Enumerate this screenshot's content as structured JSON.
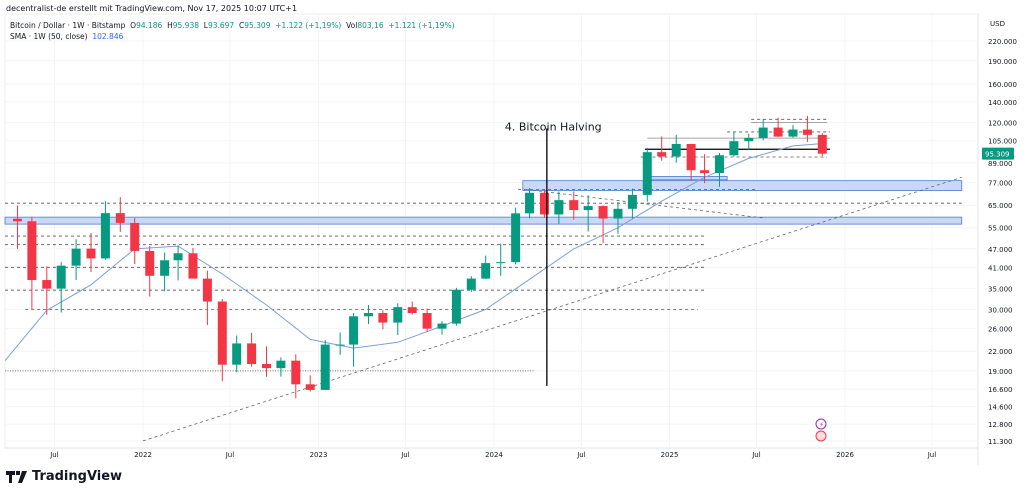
{
  "header": "decentralist-de erstellt mit TradingView.com, Nov 17, 2025 10:07 UTC+1",
  "legend": {
    "symbol": "Bitcoin / Dollar · 1W · Bitstamp",
    "o": "94.186",
    "h": "95.938",
    "l": "93.697",
    "c": "95.309",
    "change": "+1.122 (+1,19%)",
    "vol": "803,16",
    "vol_change": "+1.121 (+1,19%)",
    "sma_label": "SMA · 1W (50, close)",
    "sma_value": "102.846"
  },
  "logo_text": "TradingView",
  "chart_data": {
    "type": "candlestick",
    "yscale": "log",
    "ylabel": "USD",
    "ylim": [
      10500,
      260000
    ],
    "xlim": [
      "2021-03-20",
      "2026-08-31"
    ],
    "yticks": [
      220000,
      190000,
      160000,
      140000,
      120000,
      105000,
      89000,
      77000,
      65000,
      55000,
      47000,
      41000,
      35000,
      30000,
      26000,
      22000,
      19000,
      16600,
      14600,
      12800,
      11300
    ],
    "ytick_labels": [
      "220.000",
      "190.000",
      "160.000",
      "140.000",
      "120.000",
      "105.000",
      "89.000",
      "77.000",
      "65.000",
      "55.000",
      "47.000",
      "41.000",
      "35.000",
      "30.000",
      "26.000",
      "22.000",
      "19.000",
      "16.600",
      "14.600",
      "12.800",
      "11.300"
    ],
    "xticks": [
      {
        "d": "2021-07-01",
        "l": "Jul"
      },
      {
        "d": "2022-01-01",
        "l": "2022"
      },
      {
        "d": "2022-07-01",
        "l": "Jul"
      },
      {
        "d": "2023-01-01",
        "l": "2023"
      },
      {
        "d": "2023-07-01",
        "l": "Jul"
      },
      {
        "d": "2024-01-01",
        "l": "2024"
      },
      {
        "d": "2024-07-01",
        "l": "Jul"
      },
      {
        "d": "2025-01-01",
        "l": "2025"
      },
      {
        "d": "2025-07-01",
        "l": "Jul"
      },
      {
        "d": "2026-01-01",
        "l": "2026"
      },
      {
        "d": "2026-07-01",
        "l": "Jul"
      }
    ],
    "last_price": 95309,
    "last_price_label": "95.309",
    "colors": {
      "up": "#089981",
      "down": "#f23645",
      "sma": "#7f9fd6",
      "zone": "#c9d8f7",
      "zone_border": "#4a7bd0",
      "last": "#089981"
    },
    "candles_monthly": [
      [
        "2021-04",
        58.8,
        64.9,
        47.0,
        57.7
      ],
      [
        "2021-05",
        57.7,
        59.6,
        30.0,
        37.3
      ],
      [
        "2021-06",
        37.3,
        41.3,
        28.8,
        35.0
      ],
      [
        "2021-07",
        35.0,
        42.6,
        29.3,
        41.5
      ],
      [
        "2021-08",
        41.5,
        50.5,
        37.3,
        47.1
      ],
      [
        "2021-09",
        47.1,
        52.9,
        39.6,
        43.8
      ],
      [
        "2021-10",
        43.8,
        67.0,
        43.3,
        61.3
      ],
      [
        "2021-11",
        61.3,
        69.0,
        53.3,
        57.0
      ],
      [
        "2021-12",
        57.0,
        59.1,
        42.0,
        46.3
      ],
      [
        "2022-01",
        46.3,
        48.0,
        33.0,
        38.5
      ],
      [
        "2022-02",
        38.5,
        45.8,
        34.3,
        43.2
      ],
      [
        "2022-03",
        43.2,
        48.2,
        37.2,
        45.5
      ],
      [
        "2022-04",
        45.5,
        47.4,
        37.7,
        37.7
      ],
      [
        "2022-05",
        37.7,
        40.0,
        26.7,
        31.8
      ],
      [
        "2022-06",
        31.8,
        32.4,
        17.6,
        19.9
      ],
      [
        "2022-07",
        19.9,
        24.7,
        18.8,
        23.3
      ],
      [
        "2022-08",
        23.3,
        25.2,
        19.6,
        20.0
      ],
      [
        "2022-09",
        20.0,
        22.8,
        18.2,
        19.4
      ],
      [
        "2022-10",
        19.4,
        21.0,
        18.2,
        20.5
      ],
      [
        "2022-11",
        20.5,
        21.5,
        15.5,
        17.2
      ],
      [
        "2022-12",
        17.2,
        18.4,
        16.3,
        16.5
      ],
      [
        "2023-01",
        16.5,
        23.9,
        16.5,
        23.1
      ],
      [
        "2023-02",
        23.1,
        25.3,
        21.4,
        23.1
      ],
      [
        "2023-03",
        23.1,
        29.2,
        19.6,
        28.5
      ],
      [
        "2023-04",
        28.5,
        31.0,
        26.9,
        29.2
      ],
      [
        "2023-05",
        29.2,
        29.8,
        25.9,
        27.2
      ],
      [
        "2023-06",
        27.2,
        31.4,
        24.8,
        30.5
      ],
      [
        "2023-07",
        30.5,
        31.8,
        28.9,
        29.2
      ],
      [
        "2023-08",
        29.2,
        30.2,
        25.4,
        26.0
      ],
      [
        "2023-09",
        26.0,
        27.5,
        24.9,
        27.0
      ],
      [
        "2023-10",
        27.0,
        35.2,
        26.6,
        34.7
      ],
      [
        "2023-11",
        34.7,
        38.4,
        34.1,
        37.7
      ],
      [
        "2023-12",
        37.7,
        44.7,
        37.6,
        42.3
      ],
      [
        "2024-01",
        42.3,
        48.9,
        38.5,
        42.6
      ],
      [
        "2024-02",
        42.6,
        63.9,
        41.9,
        61.2
      ],
      [
        "2024-03",
        61.2,
        73.8,
        59.0,
        71.3
      ],
      [
        "2024-04",
        71.3,
        72.7,
        59.2,
        60.7
      ],
      [
        "2024-05",
        60.7,
        72.0,
        56.6,
        67.5
      ],
      [
        "2024-06",
        67.5,
        72.0,
        58.4,
        62.7
      ],
      [
        "2024-07",
        62.7,
        70.0,
        53.5,
        64.6
      ],
      [
        "2024-08",
        64.6,
        65.0,
        49.0,
        58.9
      ],
      [
        "2024-09",
        58.9,
        66.5,
        52.6,
        63.3
      ],
      [
        "2024-10",
        63.3,
        73.6,
        58.9,
        70.2
      ],
      [
        "2024-11",
        70.2,
        99.6,
        66.8,
        96.4
      ],
      [
        "2024-12",
        96.4,
        108.3,
        90.5,
        93.4
      ],
      [
        "2025-01",
        93.4,
        109.6,
        89.2,
        102.4
      ],
      [
        "2025-02",
        102.4,
        102.5,
        78.2,
        84.3
      ],
      [
        "2025-03",
        84.3,
        95.0,
        76.6,
        82.5
      ],
      [
        "2025-04",
        82.5,
        95.7,
        74.5,
        94.2
      ],
      [
        "2025-05",
        94.2,
        111.9,
        93.3,
        104.6
      ],
      [
        "2025-06",
        104.6,
        110.5,
        98.2,
        107.1
      ],
      [
        "2025-07",
        107.1,
        123.2,
        105.3,
        115.7
      ],
      [
        "2025-08",
        115.7,
        124.5,
        108.0,
        108.2
      ],
      [
        "2025-09",
        108.2,
        117.9,
        107.3,
        114.0
      ],
      [
        "2025-10",
        114.0,
        126.2,
        104.0,
        109.6
      ],
      [
        "2025-11",
        109.6,
        111.0,
        93.7,
        95.3
      ]
    ],
    "candle_units": "thousand USD",
    "sma_series": [
      [
        "2021-03-20",
        20.5
      ],
      [
        "2021-06-15",
        29.8
      ],
      [
        "2021-09-15",
        36
      ],
      [
        "2021-12-15",
        47
      ],
      [
        "2022-03-15",
        48
      ],
      [
        "2022-06-15",
        39
      ],
      [
        "2022-09-15",
        31
      ],
      [
        "2022-12-15",
        24
      ],
      [
        "2023-03-15",
        22.5
      ],
      [
        "2023-06-15",
        23.5
      ],
      [
        "2023-09-15",
        26.5
      ],
      [
        "2023-12-15",
        30
      ],
      [
        "2024-03-15",
        37.5
      ],
      [
        "2024-06-15",
        47
      ],
      [
        "2024-09-15",
        55
      ],
      [
        "2024-12-15",
        67
      ],
      [
        "2025-03-15",
        80
      ],
      [
        "2025-06-15",
        92
      ],
      [
        "2025-09-15",
        101
      ],
      [
        "2025-11-17",
        102.8
      ]
    ],
    "zones": [
      {
        "from": "2024-03-01",
        "to": "2026-09-01",
        "low": 72.5,
        "high": 78
      },
      {
        "from": "2021-03-20",
        "to": "2026-09-01",
        "low": 56.5,
        "high": 59.5
      },
      {
        "from": "2024-11-10",
        "to": "2025-05-01",
        "low": 78.5,
        "high": 80.5
      }
    ],
    "levels": [
      {
        "price": 66,
        "from": "2021-03-20",
        "to": "2026-09-01",
        "style": "dashed"
      },
      {
        "price": 73,
        "from": "2024-02-20",
        "to": "2025-07-01",
        "style": "dashed"
      },
      {
        "price": 51.7,
        "from": "2021-03-20",
        "to": "2025-03-15",
        "style": "dashed"
      },
      {
        "price": 48.5,
        "from": "2021-03-20",
        "to": "2025-03-15",
        "style": "dashed"
      },
      {
        "price": 41,
        "from": "2021-03-20",
        "to": "2025-03-15",
        "style": "dashed"
      },
      {
        "price": 34.6,
        "from": "2021-03-20",
        "to": "2025-03-15",
        "style": "dashed"
      },
      {
        "price": 30,
        "from": "2021-05-01",
        "to": "2025-03-01",
        "style": "dashed"
      },
      {
        "price": 19,
        "from": "2021-03-20",
        "to": "2024-03-25",
        "style": "dotted"
      },
      {
        "price": 98.5,
        "from": "2024-11-10",
        "to": "2025-12-01",
        "style": "solid-black"
      },
      {
        "price": 93,
        "from": "2024-11-01",
        "to": "2025-11-25",
        "style": "dashed"
      },
      {
        "price": 107,
        "from": "2024-11-15",
        "to": "2025-12-01",
        "style": "solid-gray"
      },
      {
        "price": 112,
        "from": "2025-05-01",
        "to": "2025-12-01",
        "style": "dashed"
      },
      {
        "price": 120,
        "from": "2025-06-20",
        "to": "2025-11-25",
        "style": "solid-gray"
      },
      {
        "price": 123,
        "from": "2025-06-20",
        "to": "2025-11-25",
        "style": "dashed"
      }
    ],
    "trendlines": [
      {
        "from": [
          "2022-01-01",
          11.3
        ],
        "to": [
          "2026-09-01",
          80
        ]
      },
      {
        "from": [
          "2024-03-10",
          73
        ],
        "to": [
          "2025-07-20",
          59
        ]
      }
    ],
    "annotation": {
      "date": "2024-04-20",
      "label": "4. Bitcoin Halving",
      "top": 115,
      "bottom": 17
    }
  }
}
